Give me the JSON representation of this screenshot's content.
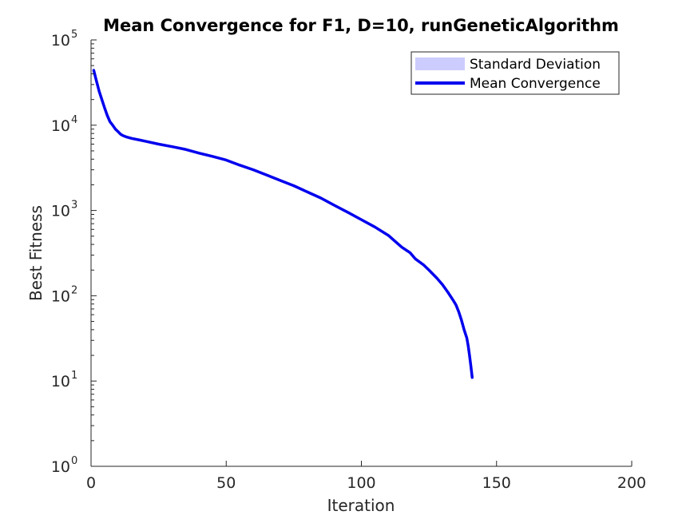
{
  "chart_data": {
    "type": "line",
    "title": "Mean Convergence for F1, D=10, runGeneticAlgorithm",
    "xlabel": "Iteration",
    "ylabel": "Best Fitness",
    "xlim": [
      0,
      200
    ],
    "ylim": [
      1,
      100000
    ],
    "yscale": "log",
    "xticks": [
      0,
      50,
      100,
      150,
      200
    ],
    "yticks": [
      {
        "base": "10",
        "exp": "0"
      },
      {
        "base": "10",
        "exp": "1"
      },
      {
        "base": "10",
        "exp": "2"
      },
      {
        "base": "10",
        "exp": "3"
      },
      {
        "base": "10",
        "exp": "4"
      },
      {
        "base": "10",
        "exp": "5"
      }
    ],
    "grid": false,
    "legend_position": "top-right",
    "legend": [
      {
        "label": "Standard Deviation",
        "kind": "patch",
        "color": "#ccccff"
      },
      {
        "label": "Mean Convergence",
        "kind": "line",
        "color": "#0000ee"
      }
    ],
    "series": [
      {
        "name": "Mean Convergence",
        "color": "#0000ee",
        "x": [
          1,
          2,
          3,
          4,
          5,
          6,
          7,
          8,
          9,
          10,
          11,
          12,
          13,
          15,
          18,
          20,
          25,
          30,
          35,
          40,
          45,
          50,
          55,
          60,
          65,
          70,
          75,
          80,
          85,
          90,
          95,
          100,
          105,
          110,
          113,
          115,
          118,
          120,
          123,
          125,
          128,
          130,
          132,
          134,
          135,
          136,
          137,
          138,
          139,
          139.5,
          140,
          140.5,
          141
        ],
        "values": [
          44000,
          33000,
          25000,
          20000,
          16000,
          13000,
          11000,
          10000,
          9000,
          8400,
          7800,
          7500,
          7300,
          7000,
          6700,
          6500,
          6000,
          5600,
          5200,
          4700,
          4300,
          3900,
          3400,
          3000,
          2600,
          2250,
          1950,
          1650,
          1400,
          1150,
          950,
          780,
          640,
          510,
          420,
          370,
          320,
          270,
          230,
          200,
          160,
          135,
          110,
          88,
          78,
          65,
          52,
          40,
          32,
          26,
          20,
          15,
          11
        ]
      }
    ],
    "std_band": null
  }
}
